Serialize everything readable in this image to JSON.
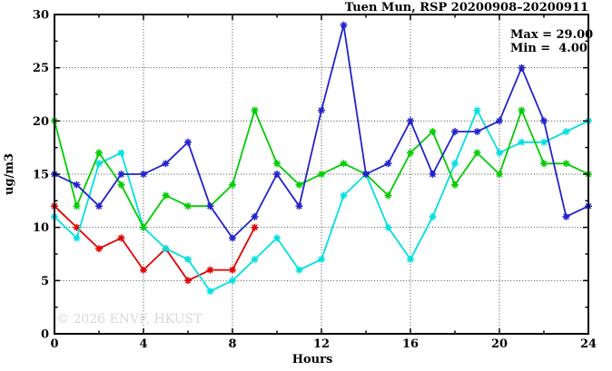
{
  "title": "Tuen Mun, RSP 20200908–20200911",
  "stats": {
    "max_label": "Max = 29.00",
    "min_label": "Min =  4.00"
  },
  "watermark": "© 2026 ENVF, HKUST",
  "chart_data": {
    "type": "line",
    "title": "Tuen Mun, RSP 20200908–20200911",
    "xlabel": "Hours",
    "ylabel": "ug/m3",
    "xlim": [
      0,
      24
    ],
    "ylim": [
      0,
      30
    ],
    "x_major_ticks": [
      0,
      4,
      8,
      12,
      16,
      20,
      24
    ],
    "x_minor_ticks": [
      2,
      6,
      10,
      14,
      18,
      22
    ],
    "y_major_ticks": [
      0,
      5,
      10,
      15,
      20,
      25,
      30
    ],
    "y_minor_ticks": [
      2.5,
      7.5,
      12.5,
      17.5,
      22.5,
      27.5
    ],
    "grid": "dotted lines at major ticks",
    "legend": "none",
    "max": 29.0,
    "min": 4.0,
    "series": [
      {
        "name": "series-red",
        "color": "#e00000",
        "x": [
          0,
          1,
          2,
          3,
          4,
          5,
          6,
          7,
          8,
          9
        ],
        "values": [
          12,
          10,
          8,
          9,
          6,
          8,
          5,
          6,
          6,
          10
        ]
      },
      {
        "name": "series-cyan",
        "color": "#00e0e0",
        "x": [
          0,
          1,
          2,
          3,
          4,
          5,
          6,
          7,
          8,
          9,
          10,
          11,
          12,
          13,
          14,
          15,
          16,
          17,
          18,
          19,
          20,
          21,
          22,
          23,
          24
        ],
        "values": [
          11,
          9,
          16,
          17,
          10,
          8,
          7,
          4,
          5,
          7,
          9,
          6,
          7,
          13,
          15,
          10,
          7,
          11,
          16,
          21,
          17,
          18,
          18,
          19,
          20
        ]
      },
      {
        "name": "series-green",
        "color": "#00cc00",
        "x": [
          0,
          1,
          2,
          3,
          4,
          5,
          6,
          7,
          8,
          9,
          10,
          11,
          12,
          13,
          14,
          15,
          16,
          17,
          18,
          19,
          20,
          21,
          22,
          23,
          24
        ],
        "values": [
          20,
          12,
          17,
          14,
          10,
          13,
          12,
          12,
          14,
          21,
          16,
          14,
          15,
          16,
          15,
          13,
          17,
          19,
          14,
          17,
          15,
          21,
          16,
          16,
          15
        ]
      },
      {
        "name": "series-blue",
        "color": "#2222cc",
        "x": [
          0,
          1,
          2,
          3,
          4,
          5,
          6,
          7,
          8,
          9,
          10,
          11,
          12,
          13,
          14,
          15,
          16,
          17,
          18,
          19,
          20,
          21,
          22,
          23,
          24
        ],
        "values": [
          15,
          14,
          12,
          15,
          15,
          16,
          18,
          12,
          9,
          11,
          15,
          12,
          21,
          29,
          15,
          16,
          20,
          15,
          19,
          19,
          20,
          25,
          20,
          11,
          12
        ]
      }
    ]
  }
}
